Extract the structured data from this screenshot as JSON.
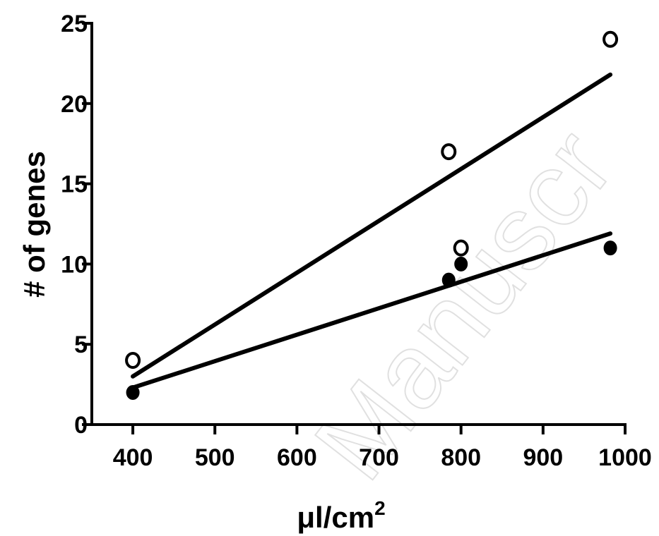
{
  "chart_data": {
    "type": "scatter",
    "xlabel": "μl/cm",
    "xlabel_superscript": "2",
    "ylabel": "# of genes",
    "xlim": [
      350,
      1000
    ],
    "ylim": [
      0,
      25
    ],
    "x_ticks": [
      400,
      500,
      600,
      700,
      800,
      900,
      1000
    ],
    "y_ticks": [
      0,
      5,
      10,
      15,
      20,
      25
    ],
    "grid": false,
    "legend": "none",
    "watermark": "Manuscr",
    "series": [
      {
        "marker": "open-circle",
        "points": [
          {
            "x": 400,
            "y": 4
          },
          {
            "x": 785,
            "y": 17
          },
          {
            "x": 800,
            "y": 11
          },
          {
            "x": 982,
            "y": 24
          }
        ],
        "fit": {
          "x": [
            400,
            982
          ],
          "y": [
            3.0,
            21.8
          ]
        }
      },
      {
        "marker": "filled-circle",
        "points": [
          {
            "x": 400,
            "y": 2
          },
          {
            "x": 785,
            "y": 9
          },
          {
            "x": 800,
            "y": 10
          },
          {
            "x": 982,
            "y": 11
          }
        ],
        "fit": {
          "x": [
            400,
            982
          ],
          "y": [
            2.3,
            11.9
          ]
        }
      }
    ]
  }
}
